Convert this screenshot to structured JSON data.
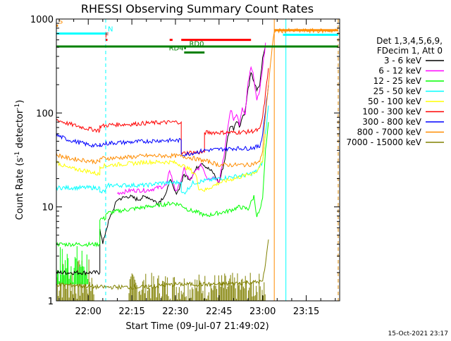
{
  "chart_data": {
    "type": "line",
    "title": "RHESSI Observing Summary Count Rates",
    "xlabel": "Start Time (09-Jul-07 21:49:02)",
    "ylabel_main": "Count Rate (s",
    "ylabel_sup1": "-1",
    "ylabel_mid": " detector",
    "ylabel_sup2": "-1",
    "ylabel_end": ")",
    "y_scale": "log",
    "ylim": [
      1,
      1000
    ],
    "xlim": [
      "21:49:02",
      "23:26:30"
    ],
    "y_ticks": [
      1,
      10,
      100,
      1000
    ],
    "y_tick_labels": [
      "1",
      "10",
      "100",
      "1000"
    ],
    "x_ticks": [
      "22:00",
      "22:15",
      "22:30",
      "22:45",
      "23:00",
      "23:15"
    ],
    "legend_header": [
      "Det 1,3,4,5,6,9,",
      "FDecim 1, Att 0"
    ],
    "series": [
      {
        "name": "3 - 6 keV",
        "color": "#000000",
        "points": [
          [
            "21:49",
            2.0
          ],
          [
            "22:04",
            2.0
          ],
          [
            "22:04",
            6.0
          ],
          [
            "22:05",
            4.0
          ],
          [
            "22:06",
            5.5
          ],
          [
            "22:07",
            7.0
          ],
          [
            "22:10",
            12
          ],
          [
            "22:14",
            13
          ],
          [
            "22:17",
            12
          ],
          [
            "22:20",
            13
          ],
          [
            "22:24",
            11
          ],
          [
            "22:27",
            14
          ],
          [
            "22:28",
            20
          ],
          [
            "22:30",
            14
          ],
          [
            "22:31",
            15
          ],
          [
            "22:33",
            22
          ],
          [
            "22:35",
            20
          ],
          [
            "22:37",
            25
          ],
          [
            "22:39",
            30
          ],
          [
            "22:41",
            26
          ],
          [
            "22:43",
            23
          ],
          [
            "22:45",
            18
          ],
          [
            "22:47",
            32
          ],
          [
            "22:48",
            55
          ],
          [
            "22:49",
            75
          ],
          [
            "22:50",
            68
          ],
          [
            "22:51",
            85
          ],
          [
            "22:52",
            72
          ],
          [
            "22:53",
            90
          ],
          [
            "22:54",
            105
          ],
          [
            "22:55",
            180
          ],
          [
            "22:56",
            260
          ],
          [
            "22:57",
            220
          ],
          [
            "22:58",
            170
          ],
          [
            "22:59",
            200
          ],
          [
            "23:00",
            380
          ],
          [
            "23:01",
            520
          ]
        ]
      },
      {
        "name": "6 - 12 keV",
        "color": "#ff00ff",
        "points": [
          [
            "22:10",
            14
          ],
          [
            "22:15",
            15
          ],
          [
            "22:20",
            15
          ],
          [
            "22:24",
            16
          ],
          [
            "22:27",
            17
          ],
          [
            "22:28",
            25
          ],
          [
            "22:30",
            15
          ],
          [
            "22:31",
            16
          ],
          [
            "22:33",
            25
          ],
          [
            "22:35",
            19
          ],
          [
            "22:37",
            24
          ],
          [
            "22:39",
            28
          ],
          [
            "22:41",
            20
          ],
          [
            "22:43",
            21
          ],
          [
            "22:45",
            19
          ],
          [
            "22:47",
            40
          ],
          [
            "22:48",
            70
          ],
          [
            "22:49",
            110
          ],
          [
            "22:50",
            85
          ],
          [
            "22:51",
            100
          ],
          [
            "22:52",
            75
          ],
          [
            "22:53",
            110
          ],
          [
            "22:54",
            95
          ],
          [
            "22:55",
            210
          ],
          [
            "22:56",
            300
          ],
          [
            "22:57",
            240
          ],
          [
            "22:58",
            130
          ],
          [
            "22:59",
            180
          ],
          [
            "23:00",
            300
          ],
          [
            "23:01",
            560
          ]
        ]
      },
      {
        "name": "12 - 25 keV",
        "color": "#00ff00",
        "points": [
          [
            "21:49",
            4.0
          ],
          [
            "22:04",
            4.0
          ],
          [
            "22:04",
            7.5
          ],
          [
            "22:06",
            7.5
          ],
          [
            "22:06",
            8.5
          ],
          [
            "22:10",
            9
          ],
          [
            "22:15",
            9.5
          ],
          [
            "22:20",
            10
          ],
          [
            "22:25",
            10.5
          ],
          [
            "22:29",
            11
          ],
          [
            "22:32",
            10.5
          ],
          [
            "22:34",
            9.5
          ],
          [
            "22:36",
            9.0
          ],
          [
            "22:39",
            8.5
          ],
          [
            "22:40",
            8.0
          ],
          [
            "22:44",
            8.5
          ],
          [
            "22:48",
            9
          ],
          [
            "22:52",
            10
          ],
          [
            "22:55",
            9.5
          ],
          [
            "22:57",
            13
          ],
          [
            "22:58",
            8
          ],
          [
            "22:59",
            9
          ],
          [
            "23:00",
            12
          ],
          [
            "23:01",
            40
          ],
          [
            "23:02",
            80
          ]
        ]
      },
      {
        "name": "25 - 50 keV",
        "color": "#00ffff",
        "points": [
          [
            "21:49",
            16
          ],
          [
            "22:04",
            16
          ],
          [
            "22:04",
            14
          ],
          [
            "22:06",
            15
          ],
          [
            "22:07",
            17
          ],
          [
            "22:15",
            17
          ],
          [
            "22:20",
            17
          ],
          [
            "22:25",
            18
          ],
          [
            "22:29",
            18
          ],
          [
            "22:32",
            18.5
          ],
          [
            "22:32",
            14
          ],
          [
            "22:33",
            14
          ],
          [
            "22:36",
            18
          ],
          [
            "22:40",
            19
          ],
          [
            "22:45",
            20
          ],
          [
            "22:50",
            21
          ],
          [
            "22:55",
            22
          ],
          [
            "22:58",
            24
          ],
          [
            "23:00",
            30
          ],
          [
            "23:01",
            60
          ],
          [
            "23:02",
            120
          ]
        ]
      },
      {
        "name": "50 - 100 keV",
        "color": "#ffff00",
        "points": [
          [
            "21:49",
            30
          ],
          [
            "21:53",
            26
          ],
          [
            "22:00",
            24
          ],
          [
            "22:04",
            22
          ],
          [
            "22:04",
            27
          ],
          [
            "22:08",
            28
          ],
          [
            "22:15",
            29
          ],
          [
            "22:20",
            30
          ],
          [
            "22:25",
            30
          ],
          [
            "22:29",
            30
          ],
          [
            "22:32",
            28
          ],
          [
            "22:35",
            25
          ],
          [
            "22:37",
            22
          ],
          [
            "22:38",
            16
          ],
          [
            "22:40",
            15
          ],
          [
            "22:45",
            18
          ],
          [
            "22:50",
            20
          ],
          [
            "22:55",
            22
          ],
          [
            "22:58",
            24
          ],
          [
            "23:00",
            30
          ],
          [
            "23:01",
            60
          ]
        ]
      },
      {
        "name": "100 - 300 keV",
        "color": "#ff0000",
        "points": [
          [
            "21:49",
            85
          ],
          [
            "21:53",
            77
          ],
          [
            "22:00",
            68
          ],
          [
            "22:04",
            65
          ],
          [
            "22:04",
            72
          ],
          [
            "22:08",
            75
          ],
          [
            "22:15",
            76
          ],
          [
            "22:20",
            78
          ],
          [
            "22:25",
            79
          ],
          [
            "22:30",
            80
          ],
          [
            "22:32",
            80
          ],
          [
            "22:32",
            37
          ],
          [
            "22:35",
            38
          ],
          [
            "22:37",
            38
          ],
          [
            "22:40",
            38
          ],
          [
            "22:40",
            62
          ],
          [
            "22:45",
            62
          ],
          [
            "22:50",
            62
          ],
          [
            "22:55",
            63
          ],
          [
            "22:59",
            66
          ],
          [
            "23:00",
            90
          ],
          [
            "23:01",
            160
          ],
          [
            "23:02",
            300
          ]
        ]
      },
      {
        "name": "300 - 800 keV",
        "color": "#0000ff",
        "points": [
          [
            "21:49",
            58
          ],
          [
            "21:53",
            52
          ],
          [
            "22:00",
            46
          ],
          [
            "22:04",
            44
          ],
          [
            "22:04",
            46
          ],
          [
            "22:08",
            48
          ],
          [
            "22:15",
            49
          ],
          [
            "22:20",
            50
          ],
          [
            "22:25",
            51
          ],
          [
            "22:30",
            51
          ],
          [
            "22:32",
            51
          ],
          [
            "22:32",
            36
          ],
          [
            "22:35",
            37
          ],
          [
            "22:40",
            40
          ],
          [
            "22:45",
            41
          ],
          [
            "22:50",
            42
          ],
          [
            "22:55",
            42
          ],
          [
            "22:59",
            44
          ],
          [
            "23:00",
            60
          ],
          [
            "23:01",
            110
          ],
          [
            "23:02",
            200
          ]
        ]
      },
      {
        "name": "800 - 7000 keV",
        "color": "#ff8c00",
        "points": [
          [
            "21:49",
            36
          ],
          [
            "21:53",
            33
          ],
          [
            "22:00",
            31
          ],
          [
            "22:04",
            30
          ],
          [
            "22:04",
            33
          ],
          [
            "22:08",
            33
          ],
          [
            "22:15",
            34
          ],
          [
            "22:20",
            35
          ],
          [
            "22:25",
            35
          ],
          [
            "22:30",
            35
          ],
          [
            "22:34",
            34
          ],
          [
            "22:38",
            32
          ],
          [
            "22:42",
            30
          ],
          [
            "22:45",
            28
          ],
          [
            "22:50",
            28
          ],
          [
            "22:55",
            28
          ],
          [
            "22:59",
            30
          ],
          [
            "23:00",
            40
          ],
          [
            "23:01",
            100
          ],
          [
            "23:02",
            200
          ],
          [
            "23:03",
            400
          ],
          [
            "23:04",
            750
          ],
          [
            "23:26",
            750
          ]
        ]
      },
      {
        "name": "7000 - 15000 keV",
        "color": "#808000",
        "points": [
          [
            "21:49",
            1.5
          ],
          [
            "22:04",
            1.4
          ],
          [
            "22:20",
            1.4
          ],
          [
            "22:30",
            1.5
          ],
          [
            "22:45",
            1.5
          ],
          [
            "23:00",
            1.6
          ],
          [
            "23:01",
            2.5
          ],
          [
            "23:02",
            4.5
          ]
        ]
      }
    ],
    "noise_bands": [
      {
        "series": "7000 - 15000 keV",
        "kind": "spikes",
        "from": "21:49",
        "to": "22:02",
        "low": 1,
        "high": 2.8,
        "color": "#808000"
      },
      {
        "series": "12 - 25 keV",
        "kind": "spikes",
        "from": "21:49",
        "to": "22:00",
        "low": 1.5,
        "high": 4,
        "color": "#00ff00"
      },
      {
        "series": "7000 - 15000 keV",
        "kind": "spikes",
        "from": "22:14",
        "to": "23:01",
        "low": 1,
        "high": 2,
        "color": "#808000"
      }
    ],
    "flag_bars": [
      {
        "label": "S",
        "color": "#ff8c00",
        "y": 850,
        "from": "21:49",
        "to": "21:49",
        "label_time": "21:49"
      },
      {
        "label": "",
        "color": "#00ffff",
        "y": 700,
        "from": "21:49",
        "to": "22:06",
        "label_time": ""
      },
      {
        "label": "N",
        "color": "#00ffff",
        "y": 700,
        "from": "22:06",
        "to": "22:06",
        "label_time": "22:06"
      },
      {
        "label": "F",
        "color": "#ff0000",
        "y": 600,
        "from": "22:06",
        "to": "22:06",
        "label_time": "22:05"
      },
      {
        "label": "",
        "color": "#ff0000",
        "y": 600,
        "from": "22:28",
        "to": "22:29",
        "label_time": ""
      },
      {
        "label": "",
        "color": "#ff0000",
        "y": 600,
        "from": "22:32",
        "to": "22:56",
        "label_time": ""
      },
      {
        "label": "",
        "color": "#008000",
        "y": 510,
        "from": "21:49",
        "to": "23:26",
        "label_time": ""
      },
      {
        "label": "RD0",
        "color": "#008000",
        "y": 490,
        "from": "22:33",
        "to": "22:33",
        "label_time": "22:34"
      },
      {
        "label": "RD4",
        "color": "#008000",
        "y": 440,
        "from": "22:33",
        "to": "22:40",
        "label_time": "22:27"
      },
      {
        "label": "",
        "color": "#ff8c00",
        "y": 760,
        "from": "23:04",
        "to": "23:26",
        "label_time": ""
      },
      {
        "label": "",
        "color": "#00ffff",
        "y": 680,
        "from": "23:07",
        "to": "23:26",
        "label_time": ""
      }
    ],
    "vlines": [
      {
        "time": "22:06",
        "color": "#00ffff",
        "dashed": true
      },
      {
        "time": "23:08",
        "color": "#00ffff",
        "dashed": false
      },
      {
        "time": "23:04",
        "color": "#ff8c00",
        "dashed": false
      },
      {
        "time": "23:26",
        "color": "#00ffff",
        "dashed": true
      },
      {
        "time": "23:26",
        "color": "#ff8c00",
        "dashed": true
      }
    ],
    "grid": false,
    "legend_position": "right",
    "timestamp": "15-Oct-2021 23:17"
  }
}
